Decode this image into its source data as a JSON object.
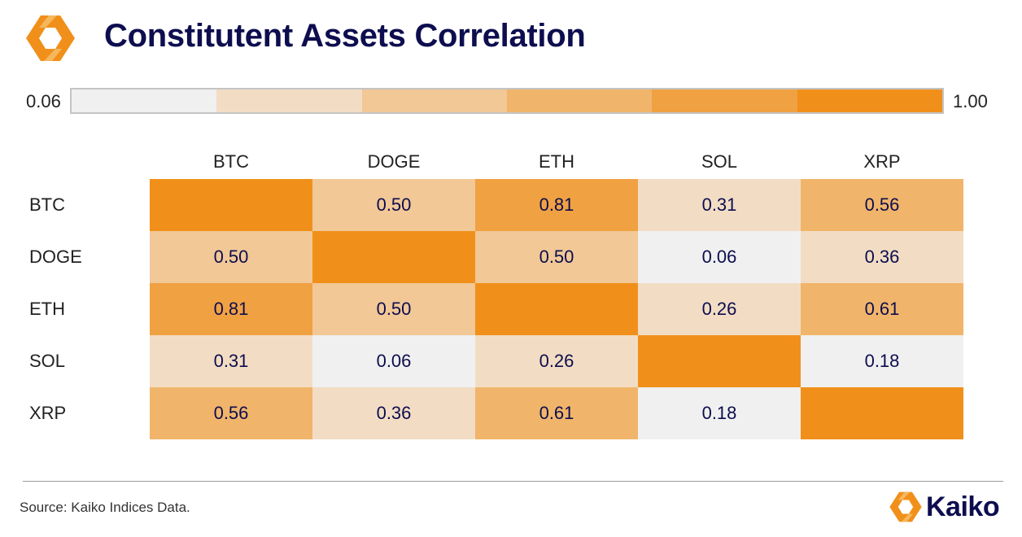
{
  "header": {
    "title": "Constitutent Assets Correlation",
    "logo_icon": "kaiko-logo-icon"
  },
  "colors": {
    "brand_orange": "#F0901A",
    "title_navy": "#0D0D4F",
    "scale": [
      "#F0F0F0",
      "#F2DDC4",
      "#F1C896",
      "#F0B56A",
      "#F0A142",
      "#F0901A"
    ]
  },
  "scale": {
    "min_label": "0.06",
    "max_label": "1.00"
  },
  "chart_data": {
    "type": "heatmap",
    "title": "Constitutent Assets Correlation",
    "columns": [
      "BTC",
      "DOGE",
      "ETH",
      "SOL",
      "XRP"
    ],
    "rows": [
      "BTC",
      "DOGE",
      "ETH",
      "SOL",
      "XRP"
    ],
    "values": [
      [
        1.0,
        0.5,
        0.81,
        0.31,
        0.56
      ],
      [
        0.5,
        1.0,
        0.5,
        0.06,
        0.36
      ],
      [
        0.81,
        0.5,
        1.0,
        0.26,
        0.61
      ],
      [
        0.31,
        0.06,
        0.26,
        1.0,
        0.18
      ],
      [
        0.56,
        0.36,
        0.61,
        0.18,
        1.0
      ]
    ],
    "color_range": [
      0.06,
      1.0
    ],
    "show_diagonal_labels": false
  },
  "footer": {
    "source": "Source: Kaiko Indices Data.",
    "brand": "Kaiko",
    "brand_icon": "kaiko-logo-icon"
  }
}
